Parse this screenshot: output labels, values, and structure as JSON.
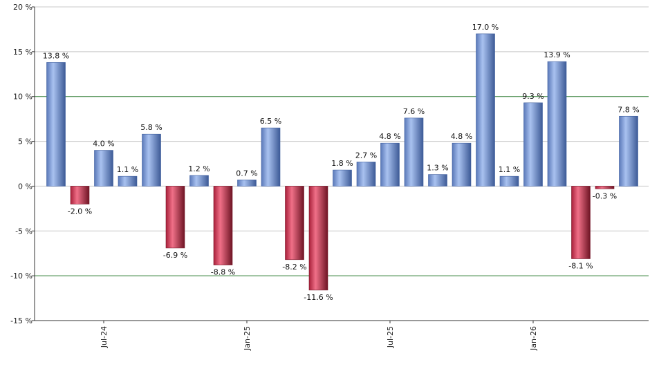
{
  "chart_data": {
    "type": "bar",
    "title": "",
    "xlabel": "",
    "ylabel": "",
    "ylim": [
      -15,
      20
    ],
    "yticks": [
      20,
      15,
      10,
      5,
      0,
      -5,
      -10,
      -15
    ],
    "ytick_labels": [
      "20 %",
      "15 %",
      "10 %",
      "5 %",
      "0 %",
      "-5 %",
      "-10 %",
      "-15 %"
    ],
    "reference_lines": [
      10,
      -10
    ],
    "grid": true,
    "values": [
      13.8,
      -2.0,
      4.0,
      1.1,
      5.8,
      -6.9,
      1.2,
      -8.8,
      0.7,
      6.5,
      -8.2,
      -11.6,
      1.8,
      2.7,
      4.8,
      7.6,
      1.3,
      4.8,
      17.0,
      1.1,
      9.3,
      13.9,
      -8.1,
      -0.3,
      7.8
    ],
    "value_labels": [
      "13.8 %",
      "-2.0 %",
      "4.0 %",
      "1.1 %",
      "5.8 %",
      "-6.9 %",
      "1.2 %",
      "-8.8 %",
      "0.7 %",
      "6.5 %",
      "-8.2 %",
      "-11.6 %",
      "1.8 %",
      "2.7 %",
      "4.8 %",
      "7.6 %",
      "1.3 %",
      "4.8 %",
      "17.0 %",
      "1.1 %",
      "9.3 %",
      "13.9 %",
      "-8.1 %",
      "-0.3 %",
      "7.8 %"
    ],
    "x_tick_labels": [
      {
        "label": "Jul-24",
        "index": 2
      },
      {
        "label": "Jan-25",
        "index": 8
      },
      {
        "label": "Jul-25",
        "index": 14
      },
      {
        "label": "Jan-26",
        "index": 20
      }
    ],
    "colors": {
      "positive": "#7f9fdf",
      "positive_dark": "#3f5f9f",
      "negative": "#d84a64",
      "negative_dark": "#7a1a2c",
      "grid": "#c8c8c8",
      "reference": "#2e7d32",
      "axis": "#333333"
    }
  }
}
